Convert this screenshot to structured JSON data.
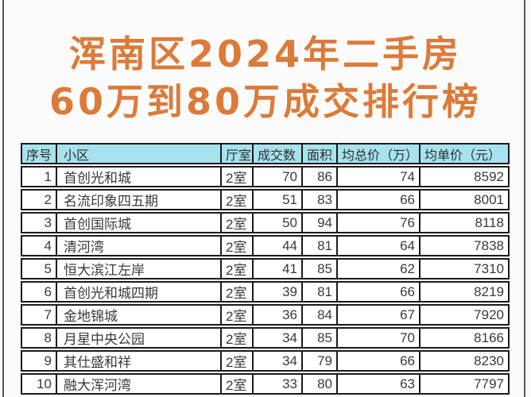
{
  "frame": {
    "border_color": "#5a5a5a",
    "background": "#fbfbfb"
  },
  "title": {
    "line1": "浑南区2024年二手房",
    "line2": "60万到80万成交排行榜",
    "color": "#db7b3a"
  },
  "table": {
    "header_bg": "#a6e3ee",
    "border_color": "#1b1b1b",
    "columns": [
      {
        "key": "rank",
        "label": "序号",
        "align": "right"
      },
      {
        "key": "community",
        "label": "小区",
        "align": "left"
      },
      {
        "key": "layout",
        "label": "厅室",
        "align": "left"
      },
      {
        "key": "deals",
        "label": "成交数",
        "align": "right"
      },
      {
        "key": "area",
        "label": "面积",
        "align": "right"
      },
      {
        "key": "avg_total",
        "label": "均总价（万）",
        "align": "right"
      },
      {
        "key": "avg_unit",
        "label": "均单价（元）",
        "align": "right"
      }
    ],
    "rows": [
      [
        "1",
        "首创光和城",
        "2室",
        "70",
        "86",
        "74",
        "8592"
      ],
      [
        "2",
        "名流印象四五期",
        "2室",
        "51",
        "83",
        "66",
        "8001"
      ],
      [
        "3",
        "首创国际城",
        "2室",
        "50",
        "94",
        "76",
        "8118"
      ],
      [
        "4",
        "清河湾",
        "2室",
        "44",
        "81",
        "64",
        "7838"
      ],
      [
        "5",
        "恒大滨江左岸",
        "2室",
        "41",
        "85",
        "62",
        "7310"
      ],
      [
        "6",
        "首创光和城四期",
        "2室",
        "39",
        "81",
        "66",
        "8219"
      ],
      [
        "7",
        "金地锦城",
        "2室",
        "36",
        "84",
        "67",
        "7920"
      ],
      [
        "8",
        "月星中央公园",
        "2室",
        "34",
        "85",
        "70",
        "8166"
      ],
      [
        "9",
        "其仕盛和祥",
        "2室",
        "34",
        "79",
        "66",
        "8230"
      ],
      [
        "10",
        "融大浑河湾",
        "2室",
        "33",
        "80",
        "63",
        "7797"
      ]
    ]
  },
  "chart_data": {
    "type": "table",
    "title": "浑南区2024年二手房 60万到80万成交排行榜",
    "columns": [
      "序号",
      "小区",
      "厅室",
      "成交数",
      "面积",
      "均总价（万）",
      "均单价（元）"
    ],
    "rows": [
      [
        1,
        "首创光和城",
        "2室",
        70,
        86,
        74,
        8592
      ],
      [
        2,
        "名流印象四五期",
        "2室",
        51,
        83,
        66,
        8001
      ],
      [
        3,
        "首创国际城",
        "2室",
        50,
        94,
        76,
        8118
      ],
      [
        4,
        "清河湾",
        "2室",
        44,
        81,
        64,
        7838
      ],
      [
        5,
        "恒大滨江左岸",
        "2室",
        41,
        85,
        62,
        7310
      ],
      [
        6,
        "首创光和城四期",
        "2室",
        39,
        81,
        66,
        8219
      ],
      [
        7,
        "金地锦城",
        "2室",
        36,
        84,
        67,
        7920
      ],
      [
        8,
        "月星中央公园",
        "2室",
        34,
        85,
        70,
        8166
      ],
      [
        9,
        "其仕盛和祥",
        "2室",
        34,
        79,
        66,
        8230
      ],
      [
        10,
        "融大浑河湾",
        "2室",
        33,
        80,
        63,
        7797
      ]
    ]
  }
}
